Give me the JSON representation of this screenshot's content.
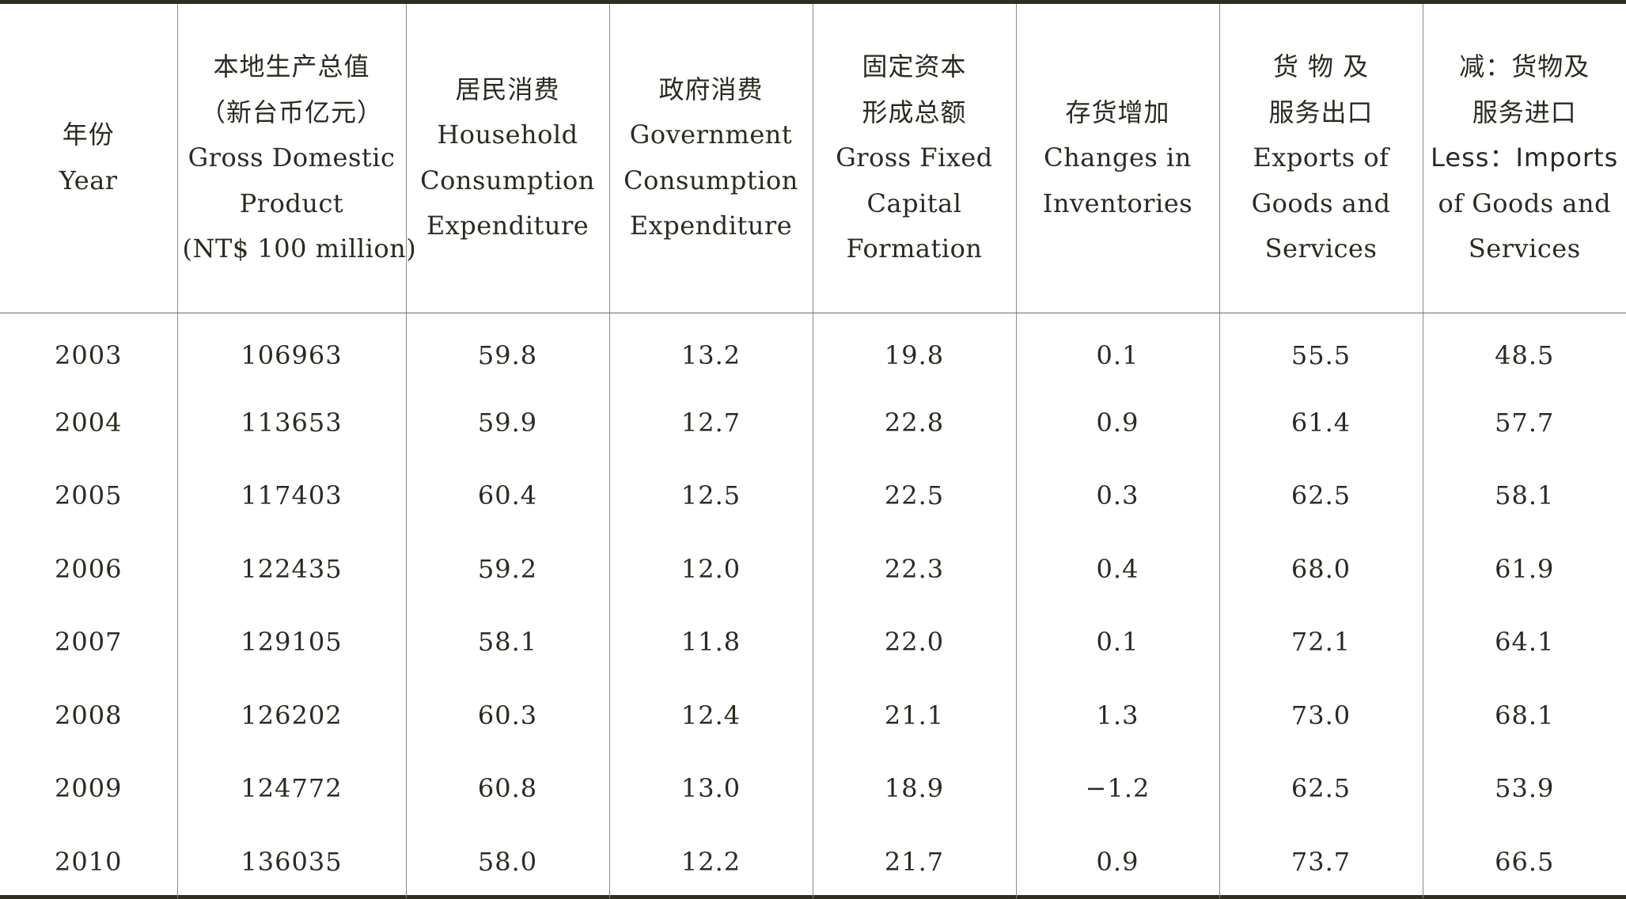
{
  "table": {
    "headers": [
      {
        "lines": [
          "年份",
          "Year"
        ]
      },
      {
        "lines": [
          "本地生产总值",
          "（新台币亿元）",
          "Gross Domestic",
          "Product",
          "(NT$ 100 million)"
        ]
      },
      {
        "lines": [
          "居民消费",
          "Household",
          "Consumption",
          "Expenditure"
        ]
      },
      {
        "lines": [
          "政府消费",
          "Government",
          "Consumption",
          "Expenditure"
        ]
      },
      {
        "lines": [
          "固定资本",
          "形成总额",
          "Gross Fixed",
          "Capital",
          "Formation"
        ]
      },
      {
        "lines": [
          "存货增加",
          "Changes in",
          "Inventories"
        ]
      },
      {
        "lines": [
          "货 物 及",
          "服务出口",
          "Exports of",
          "Goods and",
          "Services"
        ]
      },
      {
        "lines": [
          "减：货物及",
          "服务进口",
          "Less：Imports",
          "of Goods and",
          "Services"
        ]
      }
    ],
    "rows": [
      [
        "2003",
        "106963",
        "59.8",
        "13.2",
        "19.8",
        "0.1",
        "55.5",
        "48.5"
      ],
      [
        "2004",
        "113653",
        "59.9",
        "12.7",
        "22.8",
        "0.9",
        "61.4",
        "57.7"
      ],
      [
        "2005",
        "117403",
        "60.4",
        "12.5",
        "22.5",
        "0.3",
        "62.5",
        "58.1"
      ],
      [
        "2006",
        "122435",
        "59.2",
        "12.0",
        "22.3",
        "0.4",
        "68.0",
        "61.9"
      ],
      [
        "2007",
        "129105",
        "58.1",
        "11.8",
        "22.0",
        "0.1",
        "72.1",
        "64.1"
      ],
      [
        "2008",
        "126202",
        "60.3",
        "12.4",
        "21.1",
        "1.3",
        "73.0",
        "68.1"
      ],
      [
        "2009",
        "124772",
        "60.8",
        "13.0",
        "18.9",
        "−1.2",
        "62.5",
        "53.9"
      ],
      [
        "2010",
        "136035",
        "58.0",
        "12.2",
        "21.7",
        "0.9",
        "73.7",
        "66.5"
      ]
    ]
  }
}
